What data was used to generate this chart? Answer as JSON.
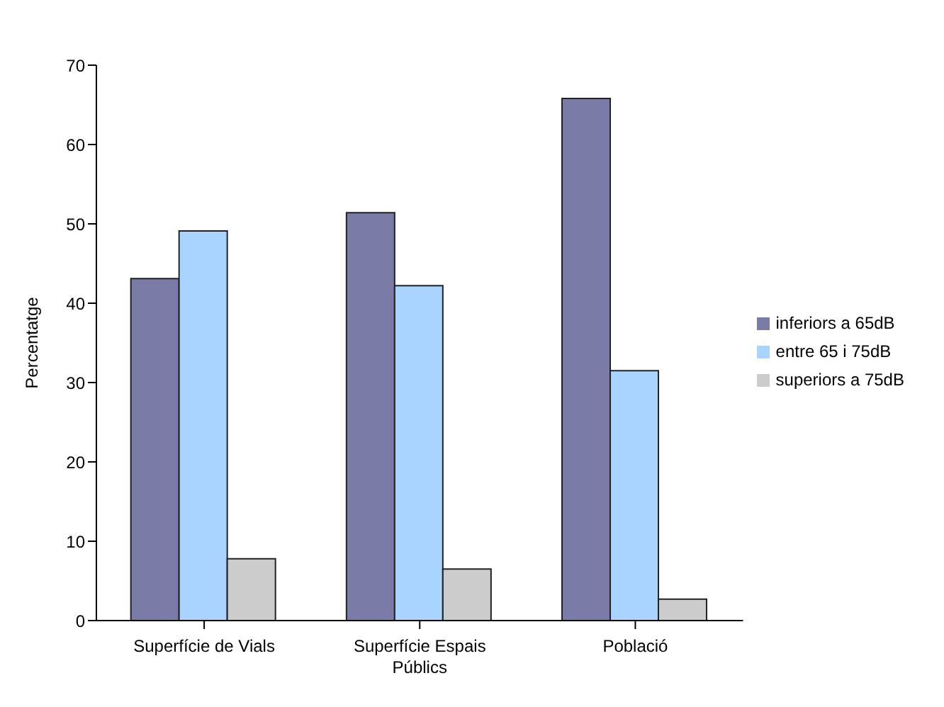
{
  "chart_data": {
    "type": "bar",
    "ylabel": "Percentatge",
    "categories": [
      "Superfície de Vials",
      "Superfície Espais Públics",
      "Població"
    ],
    "series": [
      {
        "name": "inferiors a 65dB",
        "color": "#7b7ba8",
        "values": [
          43.1,
          51.4,
          65.8
        ]
      },
      {
        "name": "entre 65 i 75dB",
        "color": "#a8d4ff",
        "values": [
          49.1,
          42.2,
          31.5
        ]
      },
      {
        "name": "superiors a 75dB",
        "color": "#cccccc",
        "values": [
          7.8,
          6.5,
          2.7
        ]
      }
    ],
    "ylim": [
      0,
      70
    ],
    "yticks": [
      0,
      10,
      20,
      30,
      40,
      50,
      60,
      70
    ],
    "grid": false,
    "legend": "right"
  }
}
